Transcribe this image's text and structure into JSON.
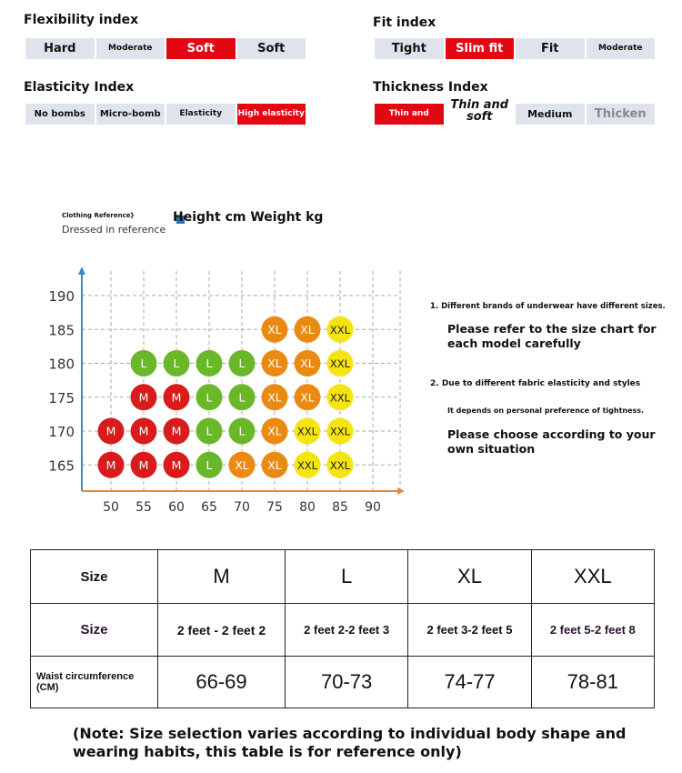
{
  "indices": [
    {
      "title": "Flexibility index",
      "options": [
        "Hard",
        "Moderate",
        "Soft",
        "Soft"
      ],
      "selected": 2
    },
    {
      "title": "Fit index",
      "options": [
        "Tight",
        "Slim fit",
        "Fit",
        "Moderate"
      ],
      "selected": 1
    },
    {
      "title": "Elasticity Index",
      "options": [
        "No bombs",
        "Micro-bomb",
        "Elasticity",
        "High elasticity"
      ],
      "selected": 3
    },
    {
      "title": "Thickness Index",
      "options": [
        "Thin and",
        "Thin and soft",
        "Medium",
        "Thicken"
      ],
      "selected": 0
    }
  ],
  "legend": {
    "small": "Clothing Reference》",
    "sub": "Dressed in reference",
    "title": "Height cm Weight kg"
  },
  "chart_data": {
    "type": "scatter",
    "title": "Height cm Weight kg",
    "x_ticks": [
      50,
      55,
      60,
      65,
      70,
      75,
      80,
      85,
      90
    ],
    "y_ticks": [
      165,
      170,
      175,
      180,
      185,
      190
    ],
    "xlim": [
      45,
      92
    ],
    "ylim": [
      160,
      192
    ],
    "grid": true,
    "size_colors": {
      "M": "#d81b1b",
      "L": "#6ab82a",
      "XL": "#ea8a12",
      "XXL": "#f5e412"
    },
    "points": [
      {
        "x": 75,
        "y": 185,
        "size": "XL"
      },
      {
        "x": 80,
        "y": 185,
        "size": "XL"
      },
      {
        "x": 85,
        "y": 185,
        "size": "XXL"
      },
      {
        "x": 55,
        "y": 180,
        "size": "L"
      },
      {
        "x": 60,
        "y": 180,
        "size": "L"
      },
      {
        "x": 65,
        "y": 180,
        "size": "L"
      },
      {
        "x": 70,
        "y": 180,
        "size": "L"
      },
      {
        "x": 75,
        "y": 180,
        "size": "XL"
      },
      {
        "x": 80,
        "y": 180,
        "size": "XL"
      },
      {
        "x": 85,
        "y": 180,
        "size": "XXL"
      },
      {
        "x": 55,
        "y": 175,
        "size": "M"
      },
      {
        "x": 60,
        "y": 175,
        "size": "M"
      },
      {
        "x": 65,
        "y": 175,
        "size": "L"
      },
      {
        "x": 70,
        "y": 175,
        "size": "L"
      },
      {
        "x": 75,
        "y": 175,
        "size": "XL"
      },
      {
        "x": 80,
        "y": 175,
        "size": "XL"
      },
      {
        "x": 85,
        "y": 175,
        "size": "XXL"
      },
      {
        "x": 50,
        "y": 170,
        "size": "M"
      },
      {
        "x": 55,
        "y": 170,
        "size": "M"
      },
      {
        "x": 60,
        "y": 170,
        "size": "M"
      },
      {
        "x": 65,
        "y": 170,
        "size": "L"
      },
      {
        "x": 70,
        "y": 170,
        "size": "L"
      },
      {
        "x": 75,
        "y": 170,
        "size": "XL"
      },
      {
        "x": 80,
        "y": 170,
        "size": "XXL"
      },
      {
        "x": 85,
        "y": 170,
        "size": "XXL"
      },
      {
        "x": 50,
        "y": 165,
        "size": "M"
      },
      {
        "x": 55,
        "y": 165,
        "size": "M"
      },
      {
        "x": 60,
        "y": 165,
        "size": "M"
      },
      {
        "x": 65,
        "y": 165,
        "size": "L"
      },
      {
        "x": 70,
        "y": 165,
        "size": "XL"
      },
      {
        "x": 75,
        "y": 165,
        "size": "XL"
      },
      {
        "x": 80,
        "y": 165,
        "size": "XXL"
      },
      {
        "x": 85,
        "y": 165,
        "size": "XXL"
      }
    ]
  },
  "notes": {
    "n1": "1. Different brands of underwear have different sizes.",
    "n1b": "Please refer to the size chart for each model carefully",
    "n2": "2. Due to different fabric elasticity and styles",
    "n2a": "It depends on personal preference of tightness.",
    "n2b": "Please choose according to your own situation"
  },
  "table": {
    "rows": [
      [
        "Size",
        "M",
        "L",
        "XL",
        "XXL"
      ],
      [
        "Size",
        "2 feet - 2 feet 2",
        "2 feet 2-2 feet 3",
        "2 feet 3-2 feet 5",
        "2 feet 5-2 feet 8"
      ],
      [
        "Waist circumference (CM)",
        "66-69",
        "70-73",
        "74-77",
        "78-81"
      ]
    ]
  },
  "footnote": "(Note: Size selection varies according to individual body shape and wearing habits, this table is for reference only)"
}
